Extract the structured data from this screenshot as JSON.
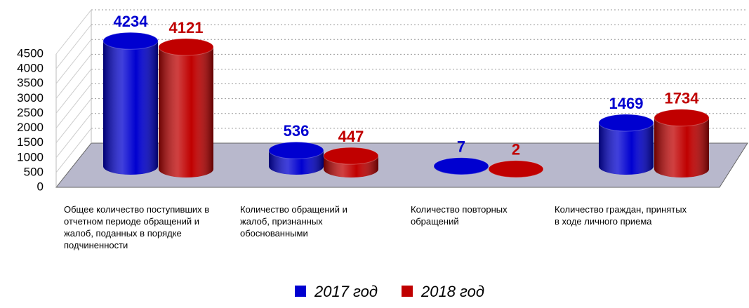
{
  "chart_data": {
    "type": "bar3d",
    "categories": [
      "Общее количество поступивших в отчетном периоде обращений и жалоб, поданных в порядке подчиненности",
      "Количество обращений и жалоб, признанных обоснованными",
      "Количество повторных обращений",
      "Количество граждан, принятых в ходе личного приема"
    ],
    "series": [
      {
        "name": "2017 год",
        "color": "#0000d0",
        "values": [
          4234,
          536,
          7,
          1469
        ]
      },
      {
        "name": "2018 год",
        "color": "#c00000",
        "values": [
          4121,
          447,
          2,
          1734
        ]
      }
    ],
    "ylim": [
      0,
      4500
    ],
    "yticks": [
      0,
      500,
      1000,
      1500,
      2000,
      2500,
      3000,
      3500,
      4000,
      4500
    ],
    "grid": true,
    "legend": "bottom"
  }
}
